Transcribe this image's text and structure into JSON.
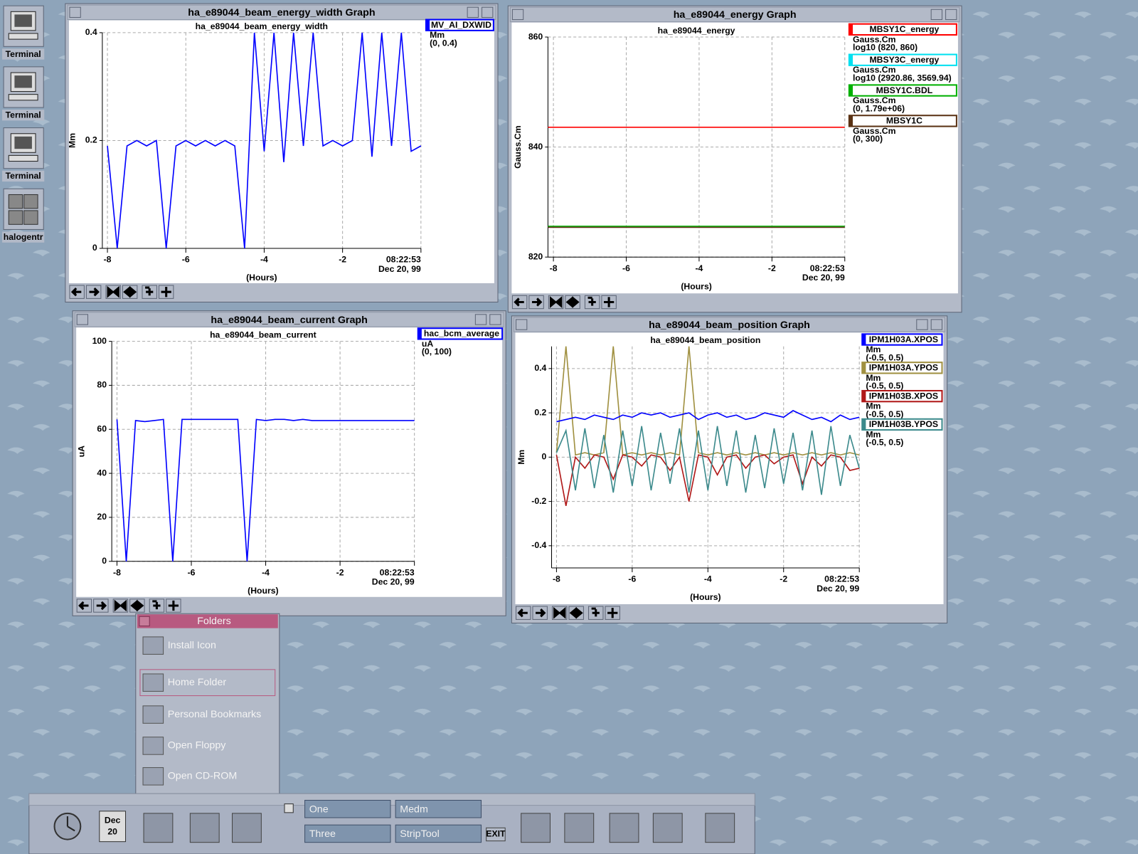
{
  "desktop_icons": [
    "Terminal",
    "Terminal",
    "Terminal",
    "halogentr"
  ],
  "windows": [
    {
      "title": "ha_e89044_beam_energy_width Graph",
      "chart": {
        "type": "line",
        "title": "ha_e89044_beam_energy_width",
        "xlabel": "(Hours)",
        "ylabel": "Mm",
        "grid": true,
        "xlim": [
          -8.13,
          0
        ],
        "xticks": [
          -8,
          -6,
          -4,
          -2,
          {
            "value": 0,
            "label": "08:22:53"
          }
        ],
        "xtick_date": "Dec 20, 99",
        "ylim": [
          0,
          0.4
        ],
        "yticks": [
          0,
          0.2,
          0.4
        ],
        "x": [
          -8,
          -7.75,
          -7.5,
          -7.25,
          -7,
          -6.75,
          -6.5,
          -6.25,
          -6,
          -5.75,
          -5.5,
          -5.25,
          -5,
          -4.75,
          -4.5,
          -4.25,
          -4,
          -3.75,
          -3.5,
          -3.25,
          -3,
          -2.75,
          -2.5,
          -2.25,
          -2,
          -1.75,
          -1.5,
          -1.25,
          -1,
          -0.75,
          -0.5,
          -0.25,
          0
        ],
        "series": [
          {
            "name": "MV_AI_DXWID",
            "color": "#0000ff",
            "unit": "Mm",
            "range": "(0, 0.4)",
            "values": [
              0.19,
              0,
              0.19,
              0.2,
              0.19,
              0.2,
              0,
              0.19,
              0.2,
              0.19,
              0.2,
              0.19,
              0.2,
              0.19,
              0,
              0.4,
              0.18,
              0.4,
              0.16,
              0.4,
              0.19,
              0.4,
              0.19,
              0.2,
              0.19,
              0.2,
              0.4,
              0.17,
              0.4,
              0.19,
              0.4,
              0.18,
              0.19
            ]
          }
        ]
      }
    },
    {
      "title": "ha_e89044_energy Graph",
      "chart": {
        "type": "line",
        "title": "ha_e89044_energy",
        "xlabel": "(Hours)",
        "ylabel": "Gauss.Cm",
        "grid": true,
        "xlim": [
          -8.15,
          0
        ],
        "xticks": [
          -8,
          -6,
          -4,
          -2,
          {
            "value": 0,
            "label": "08:22:53"
          }
        ],
        "xtick_date": "Dec 20, 99",
        "ylim": [
          820,
          860
        ],
        "yticks": [
          820,
          840,
          860
        ],
        "x": [
          -8.15,
          0
        ],
        "series": [
          {
            "name": "MBSY1C_energy",
            "color": "#ff0000",
            "unit": "Gauss.Cm",
            "range": "log10 (820, 860)",
            "values": [
              843.6,
              843.6
            ]
          },
          {
            "name": "MBSY3C_energy",
            "color": "#00e0f0",
            "unit": "Gauss.Cm",
            "range": "log10 (2920.86, 3569.94)"
          },
          {
            "name": "MBSY1C.BDL",
            "color": "#00b000",
            "unit": "Gauss.Cm",
            "range": "(0, 1.79e+06)",
            "values": [
              825.6,
              825.6
            ]
          },
          {
            "name": "MBSY1C",
            "color": "#5a3214",
            "unit": "Gauss.Cm",
            "range": "(0, 300)",
            "values": [
              825.4,
              825.4
            ]
          }
        ]
      }
    },
    {
      "title": "ha_e89044_beam_current Graph",
      "chart": {
        "type": "line",
        "title": "ha_e89044_beam_current",
        "xlabel": "(Hours)",
        "ylabel": "uA",
        "grid": true,
        "xlim": [
          -8.14,
          0
        ],
        "xticks": [
          -8,
          -6,
          -4,
          -2,
          {
            "value": 0,
            "label": "08:22:53"
          }
        ],
        "xtick_date": "Dec 20, 99",
        "ylim": [
          0,
          100
        ],
        "yticks": [
          0,
          20,
          40,
          60,
          80,
          100
        ],
        "x": [
          -8,
          -7.75,
          -7.5,
          -7.25,
          -7,
          -6.75,
          -6.5,
          -6.25,
          -6,
          -5.75,
          -5.5,
          -5.25,
          -5,
          -4.75,
          -4.5,
          -4.25,
          -4,
          -3.75,
          -3.5,
          -3.25,
          -3,
          -2.75,
          -2.5,
          -2.25,
          -2,
          -1.75,
          -1.5,
          -1.25,
          -1,
          -0.75,
          -0.5,
          -0.25,
          0
        ],
        "series": [
          {
            "name": "hac_bcm_average",
            "color": "#0000ff",
            "unit": "uA",
            "range": "(0, 100)",
            "values": [
              64.5,
              0,
              64,
              63.5,
              64,
              64.5,
              0,
              64.5,
              64.5,
              64.5,
              64.5,
              64.5,
              64.5,
              64.5,
              0,
              64.5,
              64,
              64.5,
              64.5,
              64,
              64.5,
              64,
              64,
              64,
              64,
              64,
              64,
              64,
              64,
              64,
              64,
              64,
              64
            ]
          }
        ]
      }
    },
    {
      "title": "ha_e89044_beam_position Graph",
      "chart": {
        "type": "line",
        "title": "ha_e89044_beam_position",
        "xlabel": "(Hours)",
        "ylabel": "Mm",
        "grid": true,
        "xlim": [
          -8.13,
          0
        ],
        "xticks": [
          -8,
          -6,
          -4,
          -2,
          {
            "value": 0,
            "label": "08:22:53"
          }
        ],
        "xtick_date": "Dec 20, 99",
        "ylim": [
          -0.5,
          0.5
        ],
        "yticks": [
          -0.4,
          -0.2,
          0,
          0.2,
          0.4
        ],
        "x": [
          -8,
          -7.75,
          -7.5,
          -7.25,
          -7,
          -6.75,
          -6.5,
          -6.25,
          -6,
          -5.75,
          -5.5,
          -5.25,
          -5,
          -4.75,
          -4.5,
          -4.25,
          -4,
          -3.75,
          -3.5,
          -3.25,
          -3,
          -2.75,
          -2.5,
          -2.25,
          -2,
          -1.75,
          -1.5,
          -1.25,
          -1,
          -0.75,
          -0.5,
          -0.25,
          0
        ],
        "series": [
          {
            "name": "IPM1H03A.XPOS",
            "color": "#0000ff",
            "unit": "Mm",
            "range": "(-0.5, 0.5)",
            "values": [
              0.16,
              0.17,
              0.18,
              0.17,
              0.19,
              0.18,
              0.17,
              0.19,
              0.18,
              0.2,
              0.19,
              0.2,
              0.18,
              0.19,
              0.2,
              0.17,
              0.19,
              0.2,
              0.18,
              0.19,
              0.17,
              0.18,
              0.2,
              0.19,
              0.18,
              0.21,
              0.19,
              0.17,
              0.18,
              0.16,
              0.19,
              0.17,
              0.18
            ]
          },
          {
            "name": "IPM1H03A.YPOS",
            "color": "#a09040",
            "unit": "Mm",
            "range": "(-0.5, 0.5)",
            "values": [
              0.02,
              0.5,
              0.01,
              0.02,
              0.01,
              0.02,
              0.5,
              0.01,
              0.02,
              0.01,
              0.02,
              0.01,
              0.02,
              0.01,
              0.5,
              0.02,
              0.01,
              0.02,
              0.01,
              0.02,
              0.01,
              0.02,
              0.01,
              0.02,
              0.01,
              0.02,
              0.01,
              0.02,
              0.01,
              0.02,
              0.01,
              0.02,
              0.01
            ]
          },
          {
            "name": "IPM1H03B.XPOS",
            "color": "#b01818",
            "unit": "Mm",
            "range": "(-0.5, 0.5)",
            "values": [
              0.01,
              -0.22,
              0,
              -0.05,
              0.01,
              0,
              -0.1,
              0.01,
              0,
              -0.04,
              0.01,
              0,
              -0.06,
              0,
              -0.2,
              0.01,
              0,
              -0.08,
              0,
              0.01,
              -0.05,
              0,
              0.01,
              -0.03,
              0,
              0.01,
              -0.12,
              0,
              -0.04,
              0.01,
              0,
              -0.06,
              -0.05
            ]
          },
          {
            "name": "IPM1H03B.YPOS",
            "color": "#3c8a8c",
            "unit": "Mm",
            "range": "(-0.5, 0.5)",
            "values": [
              0.02,
              0.12,
              -0.15,
              0.13,
              -0.14,
              0.1,
              -0.16,
              0.12,
              -0.13,
              0.14,
              -0.15,
              0.11,
              -0.12,
              0.13,
              -0.16,
              0.12,
              -0.15,
              0.14,
              -0.13,
              0.12,
              -0.16,
              0.1,
              -0.14,
              0.13,
              -0.12,
              0.11,
              -0.15,
              0.12,
              -0.17,
              0.14,
              -0.13,
              0.1,
              -0.05
            ]
          }
        ]
      }
    }
  ],
  "folders_menu": {
    "title": "Folders",
    "items": [
      "Install Icon",
      "Home Folder",
      "Personal Bookmarks",
      "Open Floppy",
      "Open CD-ROM"
    ]
  },
  "front_panel": {
    "date_month": "Dec",
    "date_day": "20",
    "workspaces": [
      "One",
      "Medm",
      "Three",
      "StripTool"
    ],
    "exit": "EXIT"
  }
}
